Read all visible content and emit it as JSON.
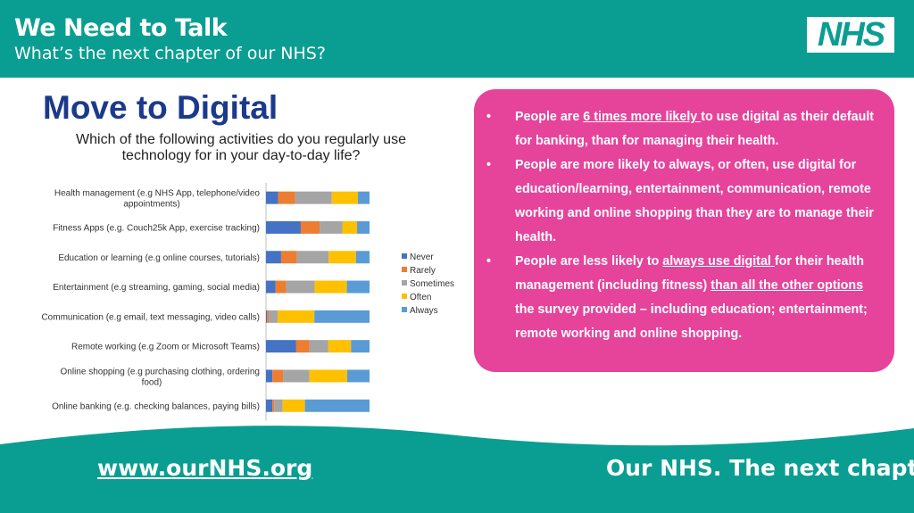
{
  "header": {
    "title": "We Need to Talk",
    "subtitle": "What’s the next chapter of our NHS?",
    "logo_text": "NHS"
  },
  "colors": {
    "teal": "#0a9e92",
    "pink": "#e6439b",
    "title_blue": "#1b3a8c"
  },
  "main": {
    "title": "Move to Digital",
    "question": "Which of the following activities do you regularly use technology for in your day-to-day life?"
  },
  "chart_data": {
    "type": "bar",
    "orientation": "horizontal",
    "stacked": true,
    "categories": [
      "Health management (e.g NHS App, telephone/video appointments)",
      "Fitness Apps (e.g. Couch25k App, exercise tracking)",
      "Education or learning (e.g online courses, tutorials)",
      "Entertainment (e.g streaming, gaming, social media)",
      "Communication (e.g email, text messaging, video calls)",
      "Remote working (e.g Zoom or Microsoft Teams)",
      "Online shopping (e.g purchasing clothing, ordering food)",
      "Online banking (e.g. checking balances, paying bills)"
    ],
    "series": [
      {
        "name": "Never",
        "color": "#4472c4",
        "values": [
          320,
          920,
          400,
          250,
          30,
          800,
          170,
          170
        ]
      },
      {
        "name": "Rarely",
        "color": "#ed7d31",
        "values": [
          450,
          500,
          420,
          280,
          50,
          350,
          280,
          50
        ]
      },
      {
        "name": "Sometimes",
        "color": "#a5a5a5",
        "values": [
          970,
          600,
          840,
          760,
          230,
          500,
          700,
          220
        ]
      },
      {
        "name": "Often",
        "color": "#ffc000",
        "values": [
          690,
          390,
          720,
          850,
          970,
          600,
          1000,
          590
        ]
      },
      {
        "name": "Always",
        "color": "#5b9bd5",
        "values": [
          310,
          330,
          360,
          600,
          1460,
          490,
          590,
          1710
        ]
      }
    ],
    "xlim": [
      0,
      3000
    ],
    "xticks": [
      "0",
      "1000",
      "2000",
      "3000"
    ],
    "legend_position": "right",
    "grid": false
  },
  "callout": {
    "b1_pre": "People are ",
    "b1_link": "6 times more likely ",
    "b1_post": "to use digital as their default for banking, than for managing their health.",
    "b2": "People are more likely to always, or often, use digital for education/learning, entertainment, communication, remote working and online shopping than they are to manage their health.",
    "b3_pre": "People are less likely to ",
    "b3_link1": "always use digital ",
    "b3_mid": "for their health management (including fitness) ",
    "b3_link2": "than all the other options",
    "b3_post": " the survey provided – including education; entertainment; remote working and online shopping.",
    "bullet": "•"
  },
  "footer": {
    "url": "www.ourNHS.org",
    "tagline": "Our NHS. The next chapter."
  }
}
